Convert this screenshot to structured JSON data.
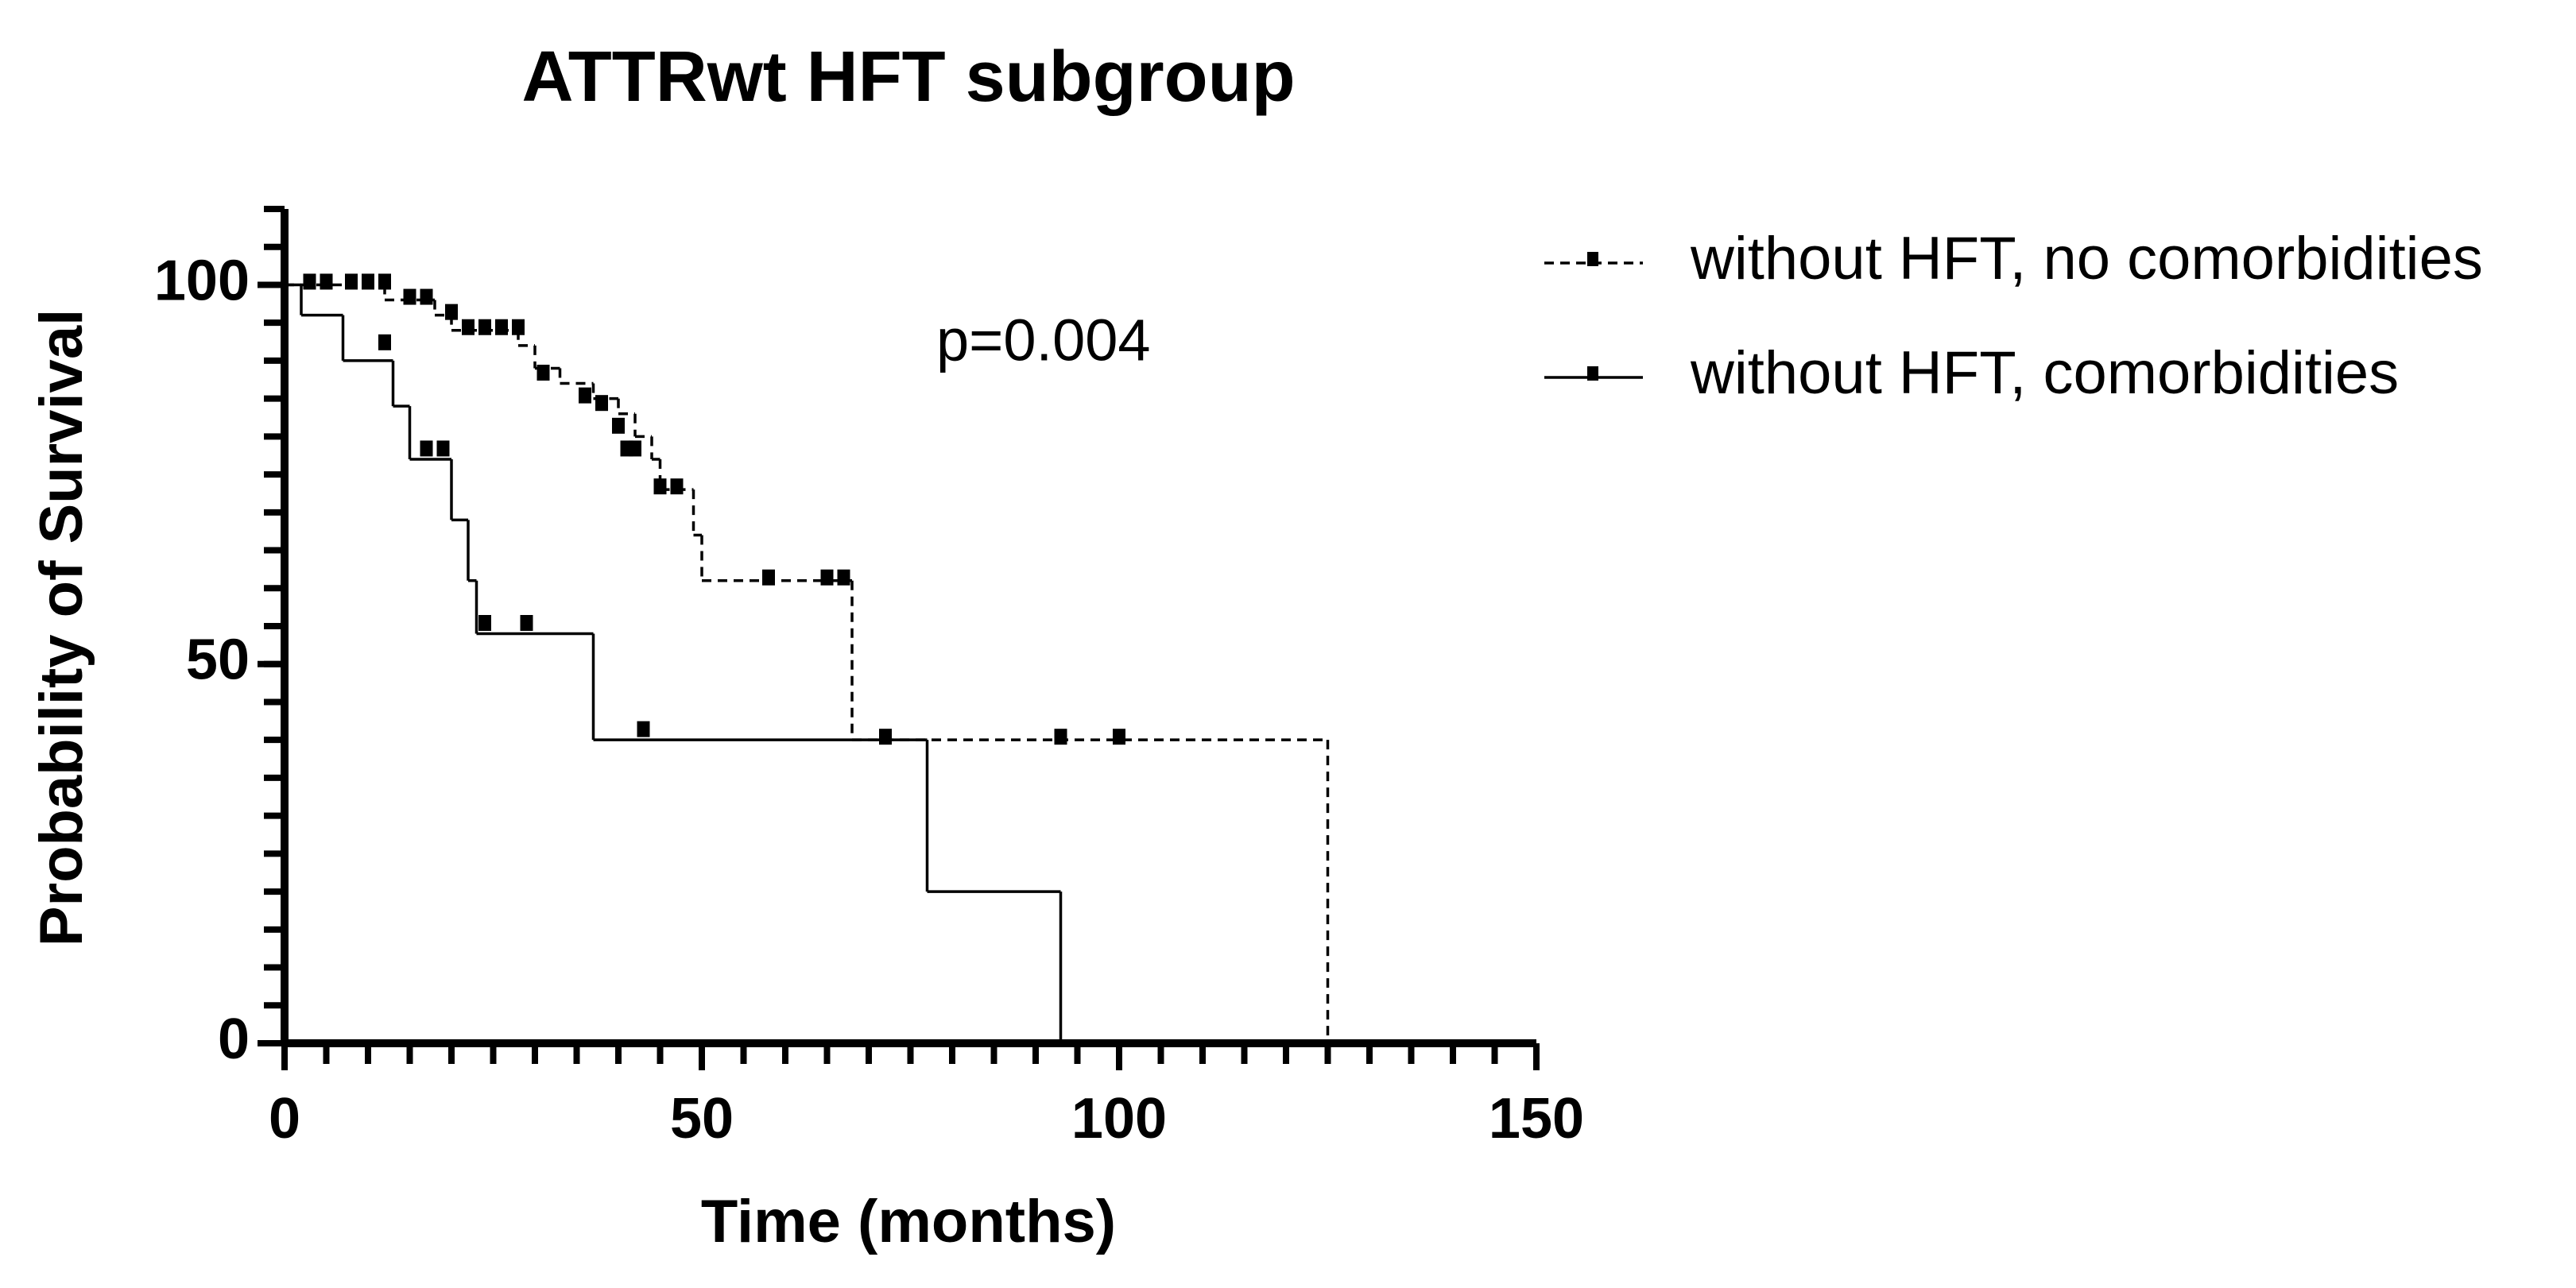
{
  "chart_data": {
    "type": "survival",
    "title": "ATTRwt HFT subgroup",
    "x_label": "Time (months)",
    "y_label": "Probability of Survival",
    "annotation": "p=0.004",
    "xlim": [
      0,
      150
    ],
    "xticks": [
      0,
      50,
      100,
      150
    ],
    "xminor_step": 5,
    "ylim": [
      0,
      110
    ],
    "yticks": [
      0,
      50,
      100
    ],
    "yminor_step": 5,
    "series": [
      {
        "name": "without HFT, no comorbidities",
        "color": "#000000",
        "dash": true,
        "x": [
          0,
          12,
          18,
          20,
          28,
          30,
          33,
          37,
          40,
          42,
          44,
          45,
          49,
          50,
          68,
          125
        ],
        "values": [
          100,
          98,
          96,
          94,
          92,
          89,
          87,
          85,
          83,
          80,
          77,
          73,
          67,
          61,
          40,
          0
        ],
        "censored_x": [
          3,
          5,
          8,
          10,
          12,
          15,
          17,
          20,
          22,
          24,
          26,
          28,
          31,
          36,
          38,
          40,
          41,
          42,
          45,
          47,
          58,
          65,
          67,
          72,
          93,
          100
        ],
        "censored_y": [
          100,
          100,
          100,
          100,
          100,
          98,
          98,
          96,
          94,
          94,
          94,
          94,
          88,
          85,
          84,
          81,
          78,
          78,
          73,
          73,
          61,
          61,
          61,
          40,
          40,
          40
        ]
      },
      {
        "name": "without HFT, comorbidities",
        "color": "#000000",
        "dash": false,
        "x": [
          0,
          2,
          7,
          13,
          15,
          20,
          22,
          23,
          37,
          77,
          93
        ],
        "values": [
          100,
          96,
          90,
          84,
          77,
          69,
          61,
          54,
          40,
          20,
          0
        ],
        "censored_x": [
          12,
          17,
          19,
          24,
          29,
          43
        ],
        "censored_y": [
          92,
          78,
          78,
          55,
          55,
          41
        ]
      }
    ]
  }
}
